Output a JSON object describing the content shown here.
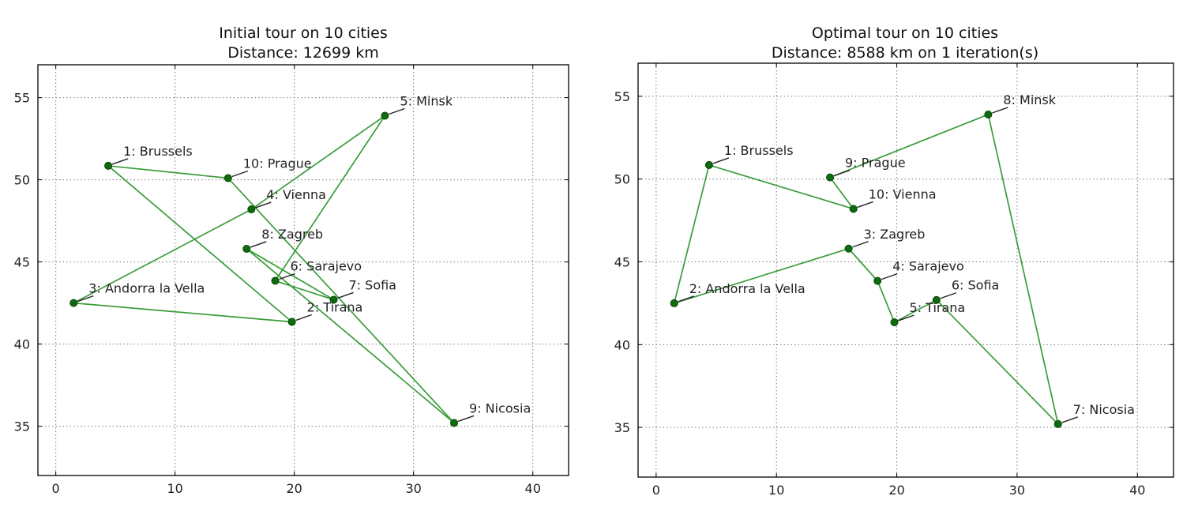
{
  "chart_data": [
    {
      "type": "line",
      "title": "Initial tour on 10 cities",
      "subtitle": "Distance: 12699 km",
      "xlim": [
        -1.5,
        43
      ],
      "ylim": [
        32,
        57
      ],
      "xticks": [
        0,
        10,
        20,
        30,
        40
      ],
      "yticks": [
        35,
        40,
        45,
        50,
        55
      ],
      "grid": true,
      "line_color": "#3a9c3a",
      "marker_color": "#0d6b0d",
      "closed": true,
      "series": [
        {
          "points": [
            {
              "label": "1: Brussels",
              "x": 4.4,
              "y": 50.85
            },
            {
              "label": "2: Tirana",
              "x": 19.8,
              "y": 41.35
            },
            {
              "label": "3: Andorra la Vella",
              "x": 1.5,
              "y": 42.5
            },
            {
              "label": "4: Vienna",
              "x": 16.4,
              "y": 48.2
            },
            {
              "label": "5: Minsk",
              "x": 27.6,
              "y": 53.9
            },
            {
              "label": "6: Sarajevo",
              "x": 18.4,
              "y": 43.85
            },
            {
              "label": "7: Sofia",
              "x": 23.3,
              "y": 42.7
            },
            {
              "label": "8: Zagreb",
              "x": 16.0,
              "y": 45.8
            },
            {
              "label": "9: Nicosia",
              "x": 33.4,
              "y": 35.2
            },
            {
              "label": "10: Prague",
              "x": 14.45,
              "y": 50.1
            }
          ]
        }
      ]
    },
    {
      "type": "line",
      "title": "Optimal tour on 10 cities",
      "subtitle": "Distance: 8588 km on 1 iteration(s)",
      "xlim": [
        -1.5,
        43
      ],
      "ylim": [
        32,
        57
      ],
      "xticks": [
        0,
        10,
        20,
        30,
        40
      ],
      "yticks": [
        35,
        40,
        45,
        50,
        55
      ],
      "grid": true,
      "line_color": "#3a9c3a",
      "marker_color": "#0d6b0d",
      "closed": true,
      "series": [
        {
          "points": [
            {
              "label": "1: Brussels",
              "x": 4.4,
              "y": 50.85
            },
            {
              "label": "2: Andorra la Vella",
              "x": 1.5,
              "y": 42.5
            },
            {
              "label": "3: Zagreb",
              "x": 16.0,
              "y": 45.8
            },
            {
              "label": "4: Sarajevo",
              "x": 18.4,
              "y": 43.85
            },
            {
              "label": "5: Tirana",
              "x": 19.8,
              "y": 41.35
            },
            {
              "label": "6: Sofia",
              "x": 23.3,
              "y": 42.7
            },
            {
              "label": "7: Nicosia",
              "x": 33.4,
              "y": 35.2
            },
            {
              "label": "8: Minsk",
              "x": 27.6,
              "y": 53.9
            },
            {
              "label": "9: Prague",
              "x": 14.45,
              "y": 50.1
            },
            {
              "label": "10: Vienna",
              "x": 16.4,
              "y": 48.2
            }
          ]
        }
      ]
    }
  ]
}
